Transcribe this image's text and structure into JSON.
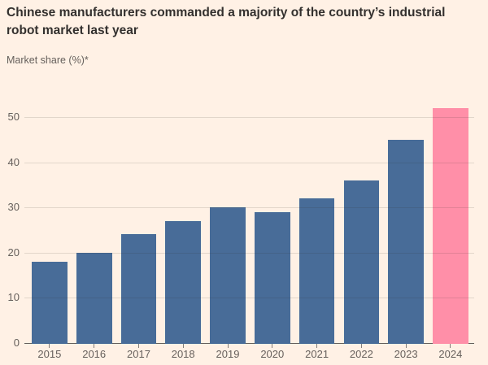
{
  "header": {
    "title": "Chinese manufacturers commanded a majority of the country’s industrial robot market last year",
    "subtitle": "Market share (%)*"
  },
  "chart_data": {
    "type": "bar",
    "title": "Chinese manufacturers commanded a majority of the country’s industrial robot market last year",
    "xlabel": "",
    "ylabel": "Market share (%)*",
    "categories": [
      "2015",
      "2016",
      "2017",
      "2018",
      "2019",
      "2020",
      "2021",
      "2022",
      "2023",
      "2024"
    ],
    "values": [
      18,
      20,
      24,
      27,
      30,
      29,
      32,
      36,
      45,
      52
    ],
    "ylim": [
      0,
      55
    ],
    "yticks": [
      0,
      10,
      20,
      30,
      40,
      50
    ],
    "grid": "horizontal",
    "legend": "none",
    "highlight_category": "2024",
    "colors": {
      "bar": "#486C98",
      "highlight": "#FF8FA8",
      "background": "#FFF1E5",
      "title_text": "#33302E",
      "label_text": "#66605C",
      "gridline": "#33302E",
      "axis": "#66605C"
    }
  }
}
